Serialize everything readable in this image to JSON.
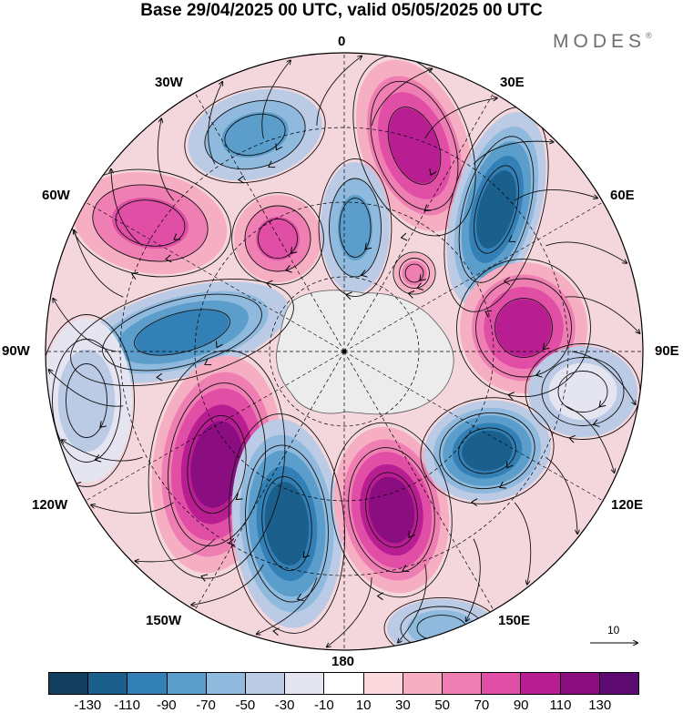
{
  "title": "Base 29/04/2025 00 UTC, valid 05/05/2025 00 UTC",
  "brand": "MODES",
  "brand_mark": "®",
  "longitude_labels": {
    "lon_0": "0",
    "lon_30e": "30E",
    "lon_60e": "60E",
    "lon_90e": "90E",
    "lon_120e": "120E",
    "lon_150e": "150E",
    "lon_180": "180",
    "lon_150w": "150W",
    "lon_120w": "120W",
    "lon_90w": "90W",
    "lon_60w": "60W",
    "lon_30w": "30W"
  },
  "vector_reference": "10",
  "colorbar": {
    "colors": [
      "#143e5e",
      "#1b5f8c",
      "#3280b6",
      "#5b9ecb",
      "#8fb9dd",
      "#bccbe5",
      "#e5e4f1",
      "#ffffff",
      "#fbd9de",
      "#f6aec3",
      "#ef7fb3",
      "#e04ea6",
      "#b81e91",
      "#8a0e80",
      "#5e0a73"
    ],
    "labels": [
      "-130",
      "-110",
      "-90",
      "-70",
      "-50",
      "-30",
      "-10",
      "10",
      "30",
      "50",
      "70",
      "90",
      "110",
      "130"
    ]
  },
  "antarctica_color": "#ececec",
  "contour_style": "dashed lat/lon grid"
}
